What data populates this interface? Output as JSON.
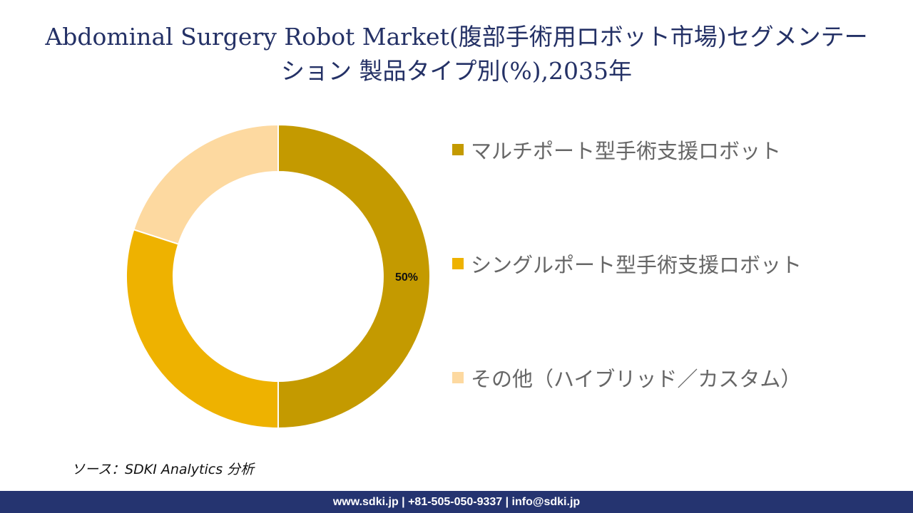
{
  "title": {
    "line1": "Abdominal Surgery Robot Market(腹部手術用ロボット市場)セグメンテー",
    "line2": "ション 製品タイプ別(%),2035年"
  },
  "chart_data": {
    "type": "pie",
    "style": "donut",
    "categories": [
      "マルチポート型手術支援ロボット",
      "シングルポート型手術支援ロボット",
      "その他（ハイブリッド／カスタム）"
    ],
    "values": [
      50,
      30,
      20
    ],
    "unit": "%",
    "colors": [
      "#C49A00",
      "#EEB200",
      "#FDD9A0"
    ],
    "data_labels": [
      "50%",
      "",
      ""
    ],
    "legend_position": "right",
    "start_angle": "top",
    "direction": "clockwise"
  },
  "source": "ソース：SDKI Analytics  分析",
  "footer": {
    "contact": "www.sdki.jp | +81-505-050-9337 | info@sdki.jp",
    "color": "#253470"
  }
}
